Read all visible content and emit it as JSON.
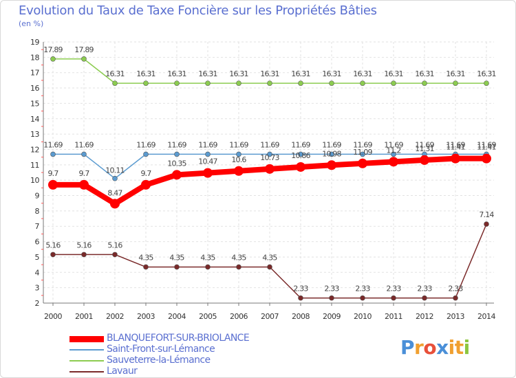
{
  "title": "Evolution du Taux de Taxe Foncière sur les Propriétés Bâties",
  "subtitle": "(en %)",
  "brand": {
    "text": "Proxiti",
    "letter_colors": [
      "#4a8fd8",
      "#f0a030",
      "#e8503a",
      "#4a8fd8",
      "#f0a030",
      "#f0a030",
      "#8cc63f"
    ]
  },
  "chart_data": {
    "type": "line",
    "title": "Evolution du Taux de Taxe Foncière sur les Propriétés Bâties",
    "ylabel": "(en %)",
    "xlabel": "",
    "ylim": [
      2,
      19
    ],
    "yticks": [
      2,
      3,
      4,
      5,
      6,
      7,
      8,
      9,
      10,
      11,
      12,
      13,
      14,
      15,
      16,
      17,
      18,
      19
    ],
    "categories": [
      "2000",
      "2001",
      "2002",
      "2003",
      "2004",
      "2005",
      "2006",
      "2007",
      "2008",
      "2009",
      "2010",
      "2011",
      "2012",
      "2013",
      "2014"
    ],
    "grid": true,
    "series": [
      {
        "name": "BLANQUEFORT-SUR-BRIOLANCE",
        "color": "#ff0000",
        "values": [
          9.7,
          9.7,
          8.47,
          9.7,
          10.35,
          10.47,
          10.6,
          10.73,
          10.86,
          10.98,
          11.09,
          11.2,
          11.31,
          11.41,
          11.41
        ],
        "labels": [
          "9.7",
          "9.7",
          "8.47",
          "9.7",
          "10.35",
          "10.47",
          "10.6",
          "10.73",
          "10.86",
          "10.98",
          "11.09",
          "11.2",
          "11.31",
          "11.41",
          "11.41"
        ]
      },
      {
        "name": "Saint-Front-sur-Lémance",
        "color": "#5b9bd0",
        "values": [
          11.69,
          11.69,
          10.11,
          11.69,
          11.69,
          11.69,
          11.69,
          11.69,
          11.69,
          11.69,
          11.69,
          11.69,
          11.69,
          11.69,
          11.69
        ],
        "labels": [
          "11.69",
          "11.69",
          "10.11",
          "11.69",
          "11.69",
          "11.69",
          "11.69",
          "11.69",
          "11.69",
          "11.69",
          "11.69",
          "11.69",
          "11.69",
          "11.69",
          "11.69"
        ]
      },
      {
        "name": "Sauveterre-la-Lémance",
        "color": "#8ccc50",
        "values": [
          17.89,
          17.89,
          16.31,
          16.31,
          16.31,
          16.31,
          16.31,
          16.31,
          16.31,
          16.31,
          16.31,
          16.31,
          16.31,
          16.31,
          16.31
        ],
        "labels": [
          "17.89",
          "17.89",
          "16.31",
          "16.31",
          "16.31",
          "16.31",
          "16.31",
          "16.31",
          "16.31",
          "16.31",
          "16.31",
          "16.31",
          "16.31",
          "16.31",
          "16.31"
        ]
      },
      {
        "name": "Lavaur",
        "color": "#7a2a2a",
        "values": [
          5.16,
          5.16,
          5.16,
          4.35,
          4.35,
          4.35,
          4.35,
          4.35,
          2.33,
          2.33,
          2.33,
          2.33,
          2.33,
          2.33,
          7.14
        ],
        "labels": [
          "5.16",
          "5.16",
          "5.16",
          "4.35",
          "4.35",
          "4.35",
          "4.35",
          "4.35",
          "2.33",
          "2.33",
          "2.33",
          "2.33",
          "2.33",
          "2.33",
          "7.14"
        ]
      }
    ],
    "legend": "bottom-left"
  }
}
